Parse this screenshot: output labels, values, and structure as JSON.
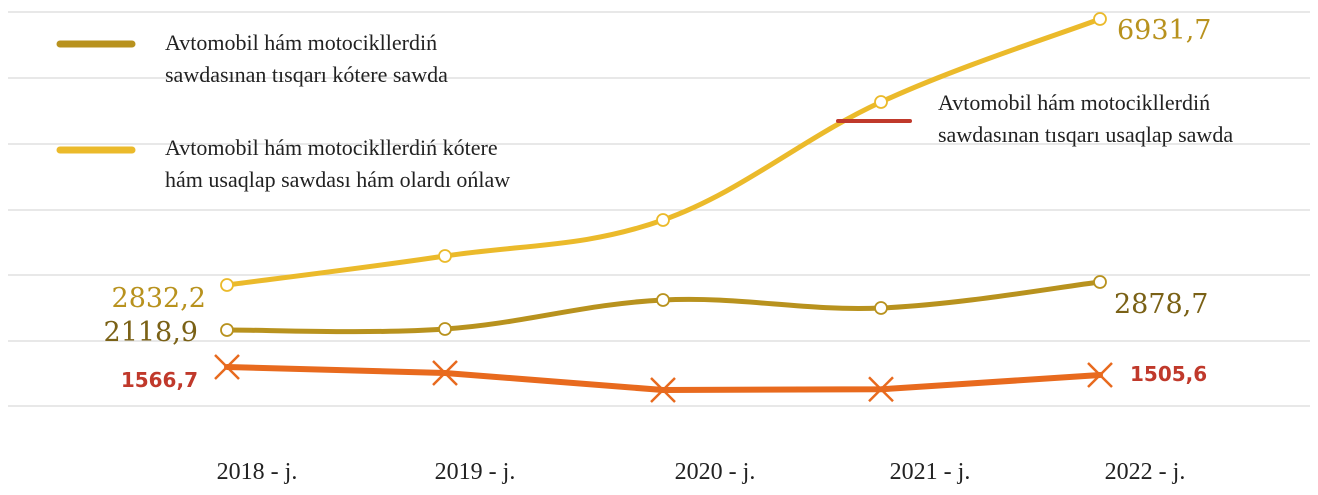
{
  "chart_data": {
    "type": "line",
    "categories": [
      "2018 - j.",
      "2019 - j.",
      "2020 - j.",
      "2021 - j.",
      "2022 - j."
    ],
    "grid": true,
    "series": [
      {
        "name": "Avtomobil hám motocikllerdiń sawdasınan tısqarı kótere sawda",
        "name_lines": [
          "Avtomobil hám motocikllerdiń",
          "sawdasınan tısqarı kótere sawda"
        ],
        "color": "#B8921E",
        "marker": "circle",
        "values": [
          2118.9,
          2130,
          2570,
          2490,
          2878.7
        ],
        "labels": {
          "first": "2118,9",
          "last": "2878,7"
        }
      },
      {
        "name": "Avtomobil hám motocikllerdiń kótere hám usaqlap sawdası hám olardı ońlaw",
        "name_lines": [
          "Avtomobil hám motocikllerdiń kótere",
          "hám usaqlap sawdası hám olardı ońlaw"
        ],
        "color": "#EBBA2B",
        "marker": "circle",
        "values": [
          2832.2,
          3250,
          3800,
          5650,
          6931.7
        ],
        "labels": {
          "first": "2832,2",
          "last": "6931,7"
        }
      },
      {
        "name": "Avtomobil hám motocikllerdiń sawdasınan tısqarı usaqlap sawda",
        "name_lines": [
          "Avtomobil hám motocikllerdiń",
          "sawdasınan tısqarı usaqlap sawda"
        ],
        "color": "#E86A1E",
        "legend_color": "#C0392B",
        "label_color": "#C0392B",
        "marker": "x",
        "values": [
          1566.7,
          1520,
          1400,
          1405,
          1505.6
        ],
        "labels": {
          "first": "1566,7",
          "last": "1505,6"
        }
      }
    ]
  }
}
